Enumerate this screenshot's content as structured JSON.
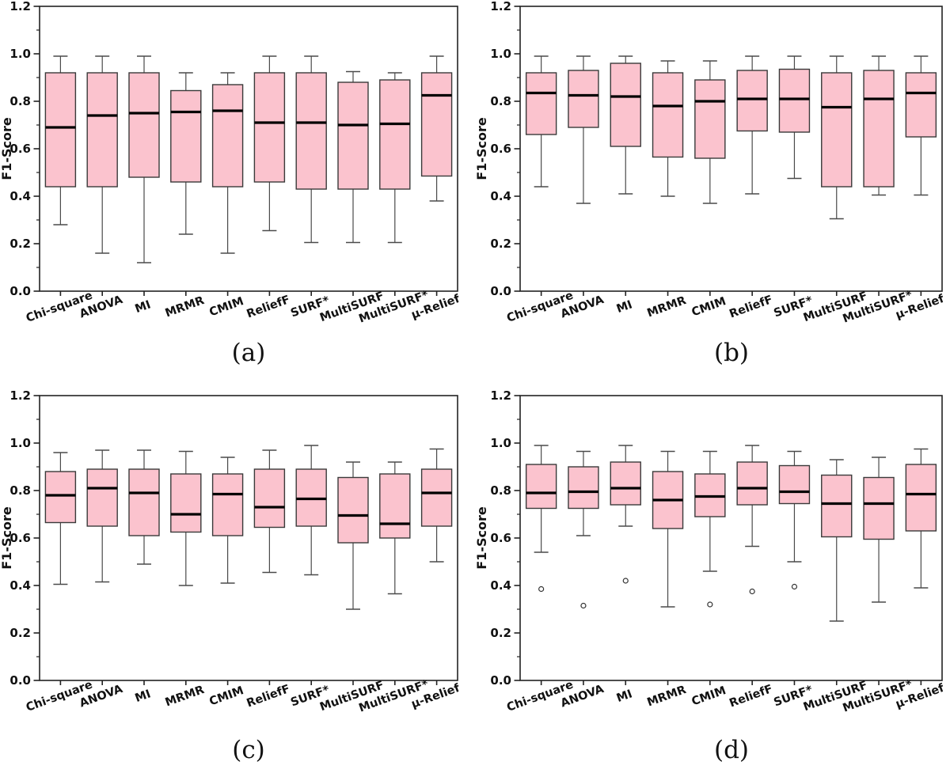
{
  "figure": {
    "background": "#ffffff"
  },
  "chart_data": {
    "type": "boxplot",
    "ylabel": "F1-Score",
    "ylim": [
      0.0,
      1.2
    ],
    "yticks": [
      0.0,
      0.2,
      0.4,
      0.6,
      0.8,
      1.0,
      1.2
    ],
    "minor_tick_step": 0.1,
    "grid": false,
    "categories": [
      "Chi-square",
      "ANOVA",
      "MI",
      "MRMR",
      "CMIM",
      "ReliefF",
      "SURF*",
      "MultiSURF",
      "MultiSURF*",
      "μ-Relief"
    ],
    "colors": {
      "box_fill": "#fbc3ce",
      "box_edge": "#3a3a3a",
      "median": "#000000",
      "whisker": "#4a4a4a",
      "axis": "#222222",
      "flier_edge": "#333333"
    },
    "subplots": [
      {
        "label": "(a)",
        "boxes": [
          {
            "whislo": 0.28,
            "q1": 0.44,
            "med": 0.69,
            "q3": 0.92,
            "whishi": 0.99,
            "fliers": []
          },
          {
            "whislo": 0.16,
            "q1": 0.44,
            "med": 0.74,
            "q3": 0.92,
            "whishi": 0.99,
            "fliers": []
          },
          {
            "whislo": 0.12,
            "q1": 0.48,
            "med": 0.75,
            "q3": 0.92,
            "whishi": 0.99,
            "fliers": []
          },
          {
            "whislo": 0.24,
            "q1": 0.46,
            "med": 0.755,
            "q3": 0.845,
            "whishi": 0.92,
            "fliers": []
          },
          {
            "whislo": 0.16,
            "q1": 0.44,
            "med": 0.76,
            "q3": 0.87,
            "whishi": 0.92,
            "fliers": []
          },
          {
            "whislo": 0.255,
            "q1": 0.46,
            "med": 0.71,
            "q3": 0.92,
            "whishi": 0.99,
            "fliers": []
          },
          {
            "whislo": 0.205,
            "q1": 0.43,
            "med": 0.71,
            "q3": 0.92,
            "whishi": 0.99,
            "fliers": []
          },
          {
            "whislo": 0.205,
            "q1": 0.43,
            "med": 0.7,
            "q3": 0.88,
            "whishi": 0.925,
            "fliers": []
          },
          {
            "whislo": 0.205,
            "q1": 0.43,
            "med": 0.705,
            "q3": 0.89,
            "whishi": 0.92,
            "fliers": []
          },
          {
            "whislo": 0.38,
            "q1": 0.485,
            "med": 0.825,
            "q3": 0.92,
            "whishi": 0.99,
            "fliers": []
          }
        ]
      },
      {
        "label": "(b)",
        "boxes": [
          {
            "whislo": 0.44,
            "q1": 0.66,
            "med": 0.835,
            "q3": 0.92,
            "whishi": 0.99,
            "fliers": []
          },
          {
            "whislo": 0.37,
            "q1": 0.69,
            "med": 0.825,
            "q3": 0.93,
            "whishi": 0.99,
            "fliers": []
          },
          {
            "whislo": 0.41,
            "q1": 0.61,
            "med": 0.82,
            "q3": 0.96,
            "whishi": 0.99,
            "fliers": []
          },
          {
            "whislo": 0.4,
            "q1": 0.565,
            "med": 0.78,
            "q3": 0.92,
            "whishi": 0.97,
            "fliers": []
          },
          {
            "whislo": 0.37,
            "q1": 0.56,
            "med": 0.8,
            "q3": 0.89,
            "whishi": 0.97,
            "fliers": []
          },
          {
            "whislo": 0.41,
            "q1": 0.675,
            "med": 0.81,
            "q3": 0.93,
            "whishi": 0.99,
            "fliers": []
          },
          {
            "whislo": 0.475,
            "q1": 0.67,
            "med": 0.81,
            "q3": 0.935,
            "whishi": 0.99,
            "fliers": []
          },
          {
            "whislo": 0.305,
            "q1": 0.44,
            "med": 0.775,
            "q3": 0.92,
            "whishi": 0.99,
            "fliers": []
          },
          {
            "whislo": 0.405,
            "q1": 0.44,
            "med": 0.81,
            "q3": 0.93,
            "whishi": 0.99,
            "fliers": []
          },
          {
            "whislo": 0.405,
            "q1": 0.65,
            "med": 0.835,
            "q3": 0.92,
            "whishi": 0.99,
            "fliers": []
          }
        ]
      },
      {
        "label": "(c)",
        "boxes": [
          {
            "whislo": 0.405,
            "q1": 0.665,
            "med": 0.78,
            "q3": 0.88,
            "whishi": 0.96,
            "fliers": []
          },
          {
            "whislo": 0.415,
            "q1": 0.65,
            "med": 0.81,
            "q3": 0.89,
            "whishi": 0.97,
            "fliers": []
          },
          {
            "whislo": 0.49,
            "q1": 0.61,
            "med": 0.79,
            "q3": 0.89,
            "whishi": 0.97,
            "fliers": []
          },
          {
            "whislo": 0.4,
            "q1": 0.625,
            "med": 0.7,
            "q3": 0.87,
            "whishi": 0.965,
            "fliers": []
          },
          {
            "whislo": 0.41,
            "q1": 0.61,
            "med": 0.785,
            "q3": 0.87,
            "whishi": 0.94,
            "fliers": []
          },
          {
            "whislo": 0.455,
            "q1": 0.645,
            "med": 0.73,
            "q3": 0.89,
            "whishi": 0.97,
            "fliers": []
          },
          {
            "whislo": 0.445,
            "q1": 0.65,
            "med": 0.765,
            "q3": 0.89,
            "whishi": 0.99,
            "fliers": []
          },
          {
            "whislo": 0.3,
            "q1": 0.58,
            "med": 0.695,
            "q3": 0.855,
            "whishi": 0.92,
            "fliers": []
          },
          {
            "whislo": 0.365,
            "q1": 0.6,
            "med": 0.66,
            "q3": 0.87,
            "whishi": 0.92,
            "fliers": []
          },
          {
            "whislo": 0.5,
            "q1": 0.65,
            "med": 0.79,
            "q3": 0.89,
            "whishi": 0.975,
            "fliers": []
          }
        ]
      },
      {
        "label": "(d)",
        "boxes": [
          {
            "whislo": 0.54,
            "q1": 0.725,
            "med": 0.79,
            "q3": 0.91,
            "whishi": 0.99,
            "fliers": [
              0.385
            ]
          },
          {
            "whislo": 0.61,
            "q1": 0.725,
            "med": 0.795,
            "q3": 0.9,
            "whishi": 0.965,
            "fliers": [
              0.315
            ]
          },
          {
            "whislo": 0.65,
            "q1": 0.74,
            "med": 0.81,
            "q3": 0.92,
            "whishi": 0.99,
            "fliers": [
              0.42
            ]
          },
          {
            "whislo": 0.31,
            "q1": 0.64,
            "med": 0.76,
            "q3": 0.88,
            "whishi": 0.965,
            "fliers": []
          },
          {
            "whislo": 0.46,
            "q1": 0.69,
            "med": 0.775,
            "q3": 0.87,
            "whishi": 0.965,
            "fliers": [
              0.32
            ]
          },
          {
            "whislo": 0.565,
            "q1": 0.74,
            "med": 0.81,
            "q3": 0.92,
            "whishi": 0.99,
            "fliers": [
              0.375
            ]
          },
          {
            "whislo": 0.5,
            "q1": 0.745,
            "med": 0.795,
            "q3": 0.905,
            "whishi": 0.965,
            "fliers": [
              0.395
            ]
          },
          {
            "whislo": 0.25,
            "q1": 0.605,
            "med": 0.745,
            "q3": 0.865,
            "whishi": 0.93,
            "fliers": []
          },
          {
            "whislo": 0.33,
            "q1": 0.595,
            "med": 0.745,
            "q3": 0.855,
            "whishi": 0.94,
            "fliers": []
          },
          {
            "whislo": 0.39,
            "q1": 0.63,
            "med": 0.785,
            "q3": 0.91,
            "whishi": 0.975,
            "fliers": []
          }
        ]
      }
    ]
  }
}
